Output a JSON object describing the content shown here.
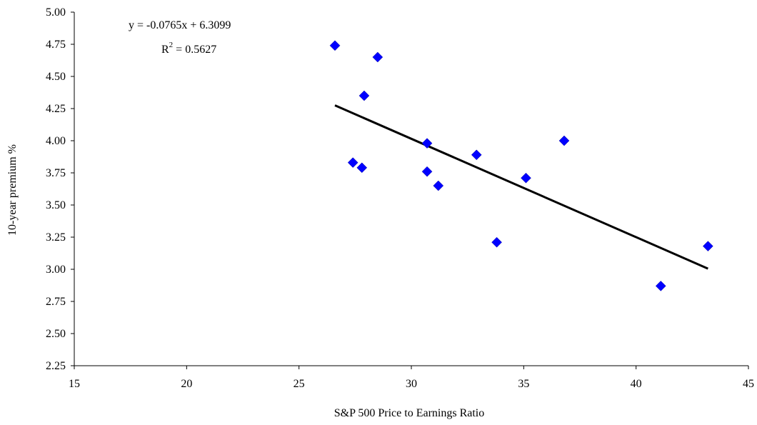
{
  "chart_data": {
    "type": "scatter",
    "xlabel": "S&P 500 Price to Earnings Ratio",
    "ylabel": "10-year premium %",
    "xlim": [
      15,
      45
    ],
    "ylim": [
      2.25,
      5.0
    ],
    "x_ticks": [
      15,
      20,
      25,
      30,
      35,
      40,
      45
    ],
    "y_ticks": [
      "2.25",
      "2.50",
      "2.75",
      "3.00",
      "3.25",
      "3.50",
      "3.75",
      "4.00",
      "4.25",
      "4.50",
      "4.75",
      "5.00"
    ],
    "grid": false,
    "marker_color": "#0000FF",
    "trendline_color": "#000000",
    "points": [
      {
        "x": 26.6,
        "y": 4.74
      },
      {
        "x": 28.5,
        "y": 4.65
      },
      {
        "x": 27.9,
        "y": 4.35
      },
      {
        "x": 30.7,
        "y": 3.98
      },
      {
        "x": 36.8,
        "y": 4.0
      },
      {
        "x": 32.9,
        "y": 3.89
      },
      {
        "x": 27.4,
        "y": 3.83
      },
      {
        "x": 27.8,
        "y": 3.79
      },
      {
        "x": 30.7,
        "y": 3.76
      },
      {
        "x": 35.1,
        "y": 3.71
      },
      {
        "x": 31.2,
        "y": 3.65
      },
      {
        "x": 33.8,
        "y": 3.21
      },
      {
        "x": 43.2,
        "y": 3.18
      },
      {
        "x": 41.1,
        "y": 2.87
      }
    ],
    "trendline": {
      "slope": -0.0765,
      "intercept": 6.3099,
      "x_range": [
        26.6,
        43.2
      ],
      "equation_label": "y = -0.0765x + 6.3099",
      "r2_label": "R",
      "r2_superscript": "2",
      "r2_value": " = 0.5627"
    }
  }
}
